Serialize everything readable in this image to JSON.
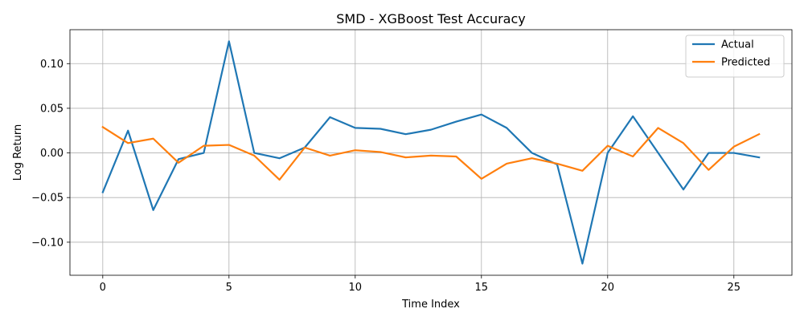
{
  "chart_data": {
    "type": "line",
    "title": "SMD - XGBoost Test Accuracy",
    "xlabel": "Time Index",
    "ylabel": "Log Return",
    "xlim": [
      -1.3,
      27.3
    ],
    "ylim": [
      -0.137,
      0.138
    ],
    "xticks": [
      0,
      5,
      10,
      15,
      20,
      25
    ],
    "xtick_labels": [
      "0",
      "5",
      "10",
      "15",
      "20",
      "25"
    ],
    "yticks": [
      -0.1,
      -0.05,
      0.0,
      0.05,
      0.1
    ],
    "ytick_labels": [
      "−0.10",
      "−0.05",
      "0.00",
      "0.05",
      "0.10"
    ],
    "grid": true,
    "legend_position": "top-right",
    "x": [
      0,
      1,
      2,
      3,
      4,
      5,
      6,
      7,
      8,
      9,
      10,
      11,
      12,
      13,
      14,
      15,
      16,
      17,
      18,
      19,
      20,
      21,
      22,
      23,
      24,
      25,
      26
    ],
    "series": [
      {
        "name": "Actual",
        "color": "#1f77b4",
        "values": [
          -0.044,
          0.025,
          -0.064,
          -0.007,
          0.0,
          0.125,
          0.0,
          -0.006,
          0.006,
          0.04,
          0.028,
          0.027,
          0.021,
          0.026,
          0.035,
          0.043,
          0.028,
          0.0,
          -0.013,
          -0.124,
          0.0,
          0.041,
          0.0,
          -0.041,
          0.0,
          0.0,
          -0.005
        ]
      },
      {
        "name": "Predicted",
        "color": "#ff7f0e",
        "values": [
          0.029,
          0.011,
          0.016,
          -0.011,
          0.008,
          0.009,
          -0.003,
          -0.03,
          0.006,
          -0.003,
          0.003,
          0.001,
          -0.005,
          -0.003,
          -0.004,
          -0.029,
          -0.012,
          -0.006,
          -0.012,
          -0.02,
          0.008,
          -0.004,
          0.028,
          0.011,
          -0.019,
          0.007,
          0.021
        ]
      }
    ]
  }
}
